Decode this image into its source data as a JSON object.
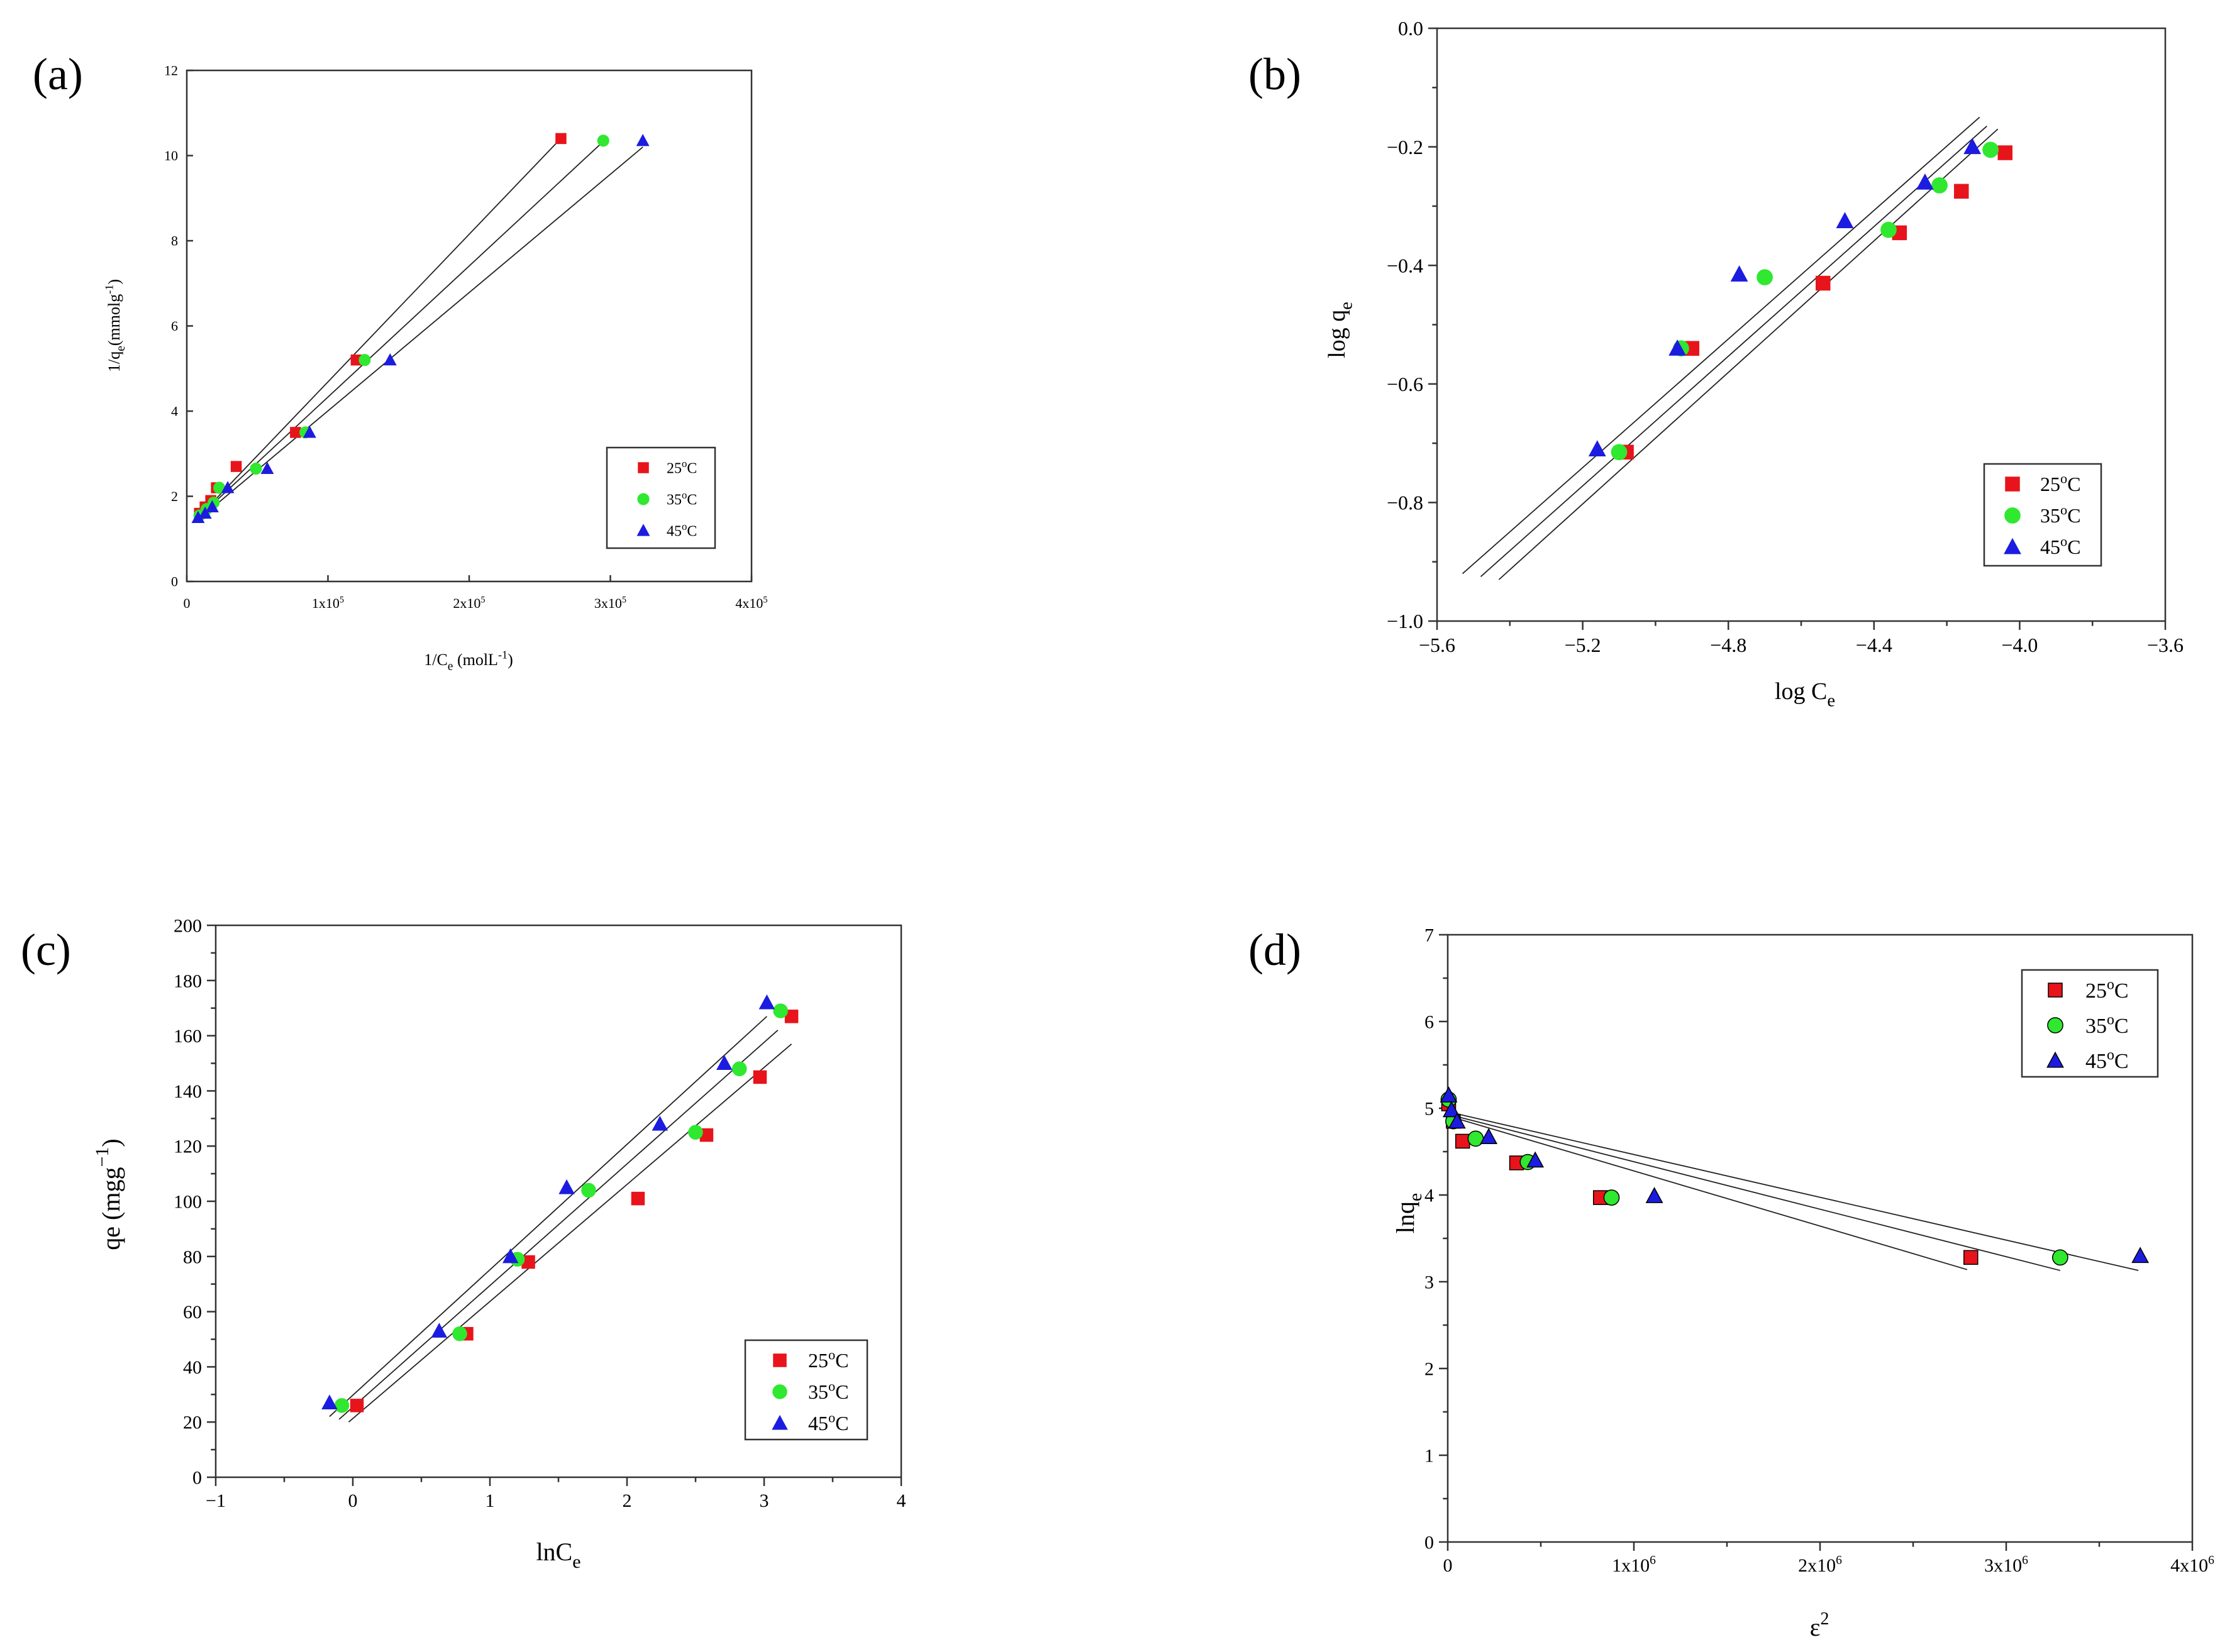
{
  "colors": {
    "25": "#e8141b",
    "35": "#2fe82f",
    "45": "#1c1ce0"
  },
  "chart_data": [
    {
      "type": "scatter",
      "panel": "(a)",
      "title": "",
      "xlabel": "1/C",
      "xlabel_sub": "e",
      "xlabel_unit": "(molL",
      "xlabel_unit_sup": "-1",
      "xlabel_unit_close": ")",
      "ylabel": "1/q",
      "ylabel_sub": "e",
      "ylabel_unit": "(mmolg",
      "ylabel_unit_sup": "-1",
      "ylabel_unit_close": ")",
      "xlim": [
        0,
        400000
      ],
      "ylim": [
        0,
        12
      ],
      "xticks": [
        0,
        100000,
        200000,
        300000,
        400000
      ],
      "xtick_labels": [
        "0",
        "1x10",
        "2x10",
        "3x10",
        "4x10"
      ],
      "xtick_sups": [
        "",
        "5",
        "5",
        "5",
        "5"
      ],
      "yticks": [
        0,
        2,
        4,
        6,
        8,
        10,
        12
      ],
      "ytick_labels": [
        "0",
        "2",
        "4",
        "6",
        "8",
        "10",
        "12"
      ],
      "legend": {
        "placement": "bottom-right",
        "entries": [
          "25",
          "35",
          "45"
        ],
        "sup": "o",
        "suffix": "C"
      },
      "series": [
        {
          "name": "25oC",
          "marker": "square",
          "x": [
            9000,
            13000,
            17000,
            21000,
            35000,
            77000,
            120000,
            265000
          ],
          "y": [
            1.6,
            1.75,
            1.9,
            2.2,
            2.7,
            3.5,
            5.2,
            10.4
          ],
          "fit": [
            [
              8000,
              1.5
            ],
            [
              262000,
              10.3
            ]
          ]
        },
        {
          "name": "35oC",
          "marker": "circle",
          "x": [
            9000,
            14000,
            19000,
            23000,
            49000,
            84000,
            126000,
            295000
          ],
          "y": [
            1.55,
            1.7,
            1.85,
            2.2,
            2.65,
            3.5,
            5.2,
            10.35
          ],
          "fit": [
            [
              8000,
              1.5
            ],
            [
              294000,
              10.3
            ]
          ]
        },
        {
          "name": "45oC",
          "marker": "triangle",
          "x": [
            8000,
            13000,
            18000,
            29000,
            57000,
            87000,
            144000,
            323000
          ],
          "y": [
            1.5,
            1.6,
            1.75,
            2.2,
            2.65,
            3.5,
            5.2,
            10.35
          ],
          "fit": [
            [
              8000,
              1.45
            ],
            [
              323000,
              10.2
            ]
          ]
        }
      ]
    },
    {
      "type": "scatter",
      "panel": "(b)",
      "title": "",
      "xlabel": "log C",
      "xlabel_sub": "e",
      "ylabel": "log q",
      "ylabel_sub": "e",
      "xlim": [
        -5.6,
        -3.6
      ],
      "ylim": [
        -1.0,
        0.0
      ],
      "xticks": [
        -5.6,
        -5.2,
        -4.8,
        -4.4,
        -4.0,
        -3.6
      ],
      "xtick_labels": [
        "−5.6",
        "−5.2",
        "−4.8",
        "−4.4",
        "−4.0",
        "−3.6"
      ],
      "yticks": [
        -1.0,
        -0.8,
        -0.6,
        -0.4,
        -0.2,
        0.0
      ],
      "ytick_labels": [
        "−1.0",
        "−0.8",
        "−0.6",
        "−0.4",
        "−0.2",
        "0.0"
      ],
      "legend": {
        "placement": "bottom-right",
        "entries": [
          "25",
          "35",
          "45"
        ],
        "sup": "o",
        "suffix": "C"
      },
      "series": [
        {
          "name": "25oC",
          "marker": "square",
          "x": [
            -5.08,
            -4.9,
            -4.54,
            -4.33,
            -4.16,
            -4.04
          ],
          "y": [
            -0.715,
            -0.54,
            -0.43,
            -0.345,
            -0.275,
            -0.21
          ],
          "fit": [
            [
              -5.43,
              -0.93
            ],
            [
              -4.06,
              -0.17
            ]
          ]
        },
        {
          "name": "35oC",
          "marker": "circle",
          "x": [
            -5.1,
            -4.93,
            -4.7,
            -4.36,
            -4.22,
            -4.08
          ],
          "y": [
            -0.715,
            -0.54,
            -0.42,
            -0.34,
            -0.265,
            -0.205
          ],
          "fit": [
            [
              -5.48,
              -0.925
            ],
            [
              -4.09,
              -0.165
            ]
          ]
        },
        {
          "name": "45oC",
          "marker": "triangle",
          "x": [
            -5.16,
            -4.94,
            -4.77,
            -4.48,
            -4.26,
            -4.13
          ],
          "y": [
            -0.71,
            -0.54,
            -0.415,
            -0.325,
            -0.26,
            -0.2
          ],
          "fit": [
            [
              -5.53,
              -0.92
            ],
            [
              -4.11,
              -0.15
            ]
          ]
        }
      ]
    },
    {
      "type": "scatter",
      "panel": "(c)",
      "title": "",
      "xlabel": "lnC",
      "xlabel_sub": "e",
      "ylabel": "qe (mgg",
      "ylabel_sup": "−1",
      "ylabel_close": ")",
      "xlim": [
        -1,
        4
      ],
      "ylim": [
        0,
        200
      ],
      "xticks": [
        -1,
        0,
        1,
        2,
        3,
        4
      ],
      "xtick_labels": [
        "−1",
        "0",
        "1",
        "2",
        "3",
        "4"
      ],
      "yticks": [
        0,
        20,
        40,
        60,
        80,
        100,
        120,
        140,
        160,
        180,
        200
      ],
      "ytick_labels": [
        "0",
        "20",
        "40",
        "60",
        "80",
        "100",
        "120",
        "140",
        "160",
        "180",
        "200"
      ],
      "legend": {
        "placement": "bottom-right",
        "entries": [
          "25",
          "35",
          "45"
        ],
        "sup": "o",
        "suffix": "C"
      },
      "series": [
        {
          "name": "25oC",
          "marker": "square",
          "x": [
            0.03,
            0.83,
            1.28,
            2.08,
            2.58,
            2.97,
            3.2
          ],
          "y": [
            26,
            52,
            78,
            101,
            124,
            145,
            167
          ],
          "fit": [
            [
              -0.03,
              20
            ],
            [
              3.2,
              157
            ]
          ]
        },
        {
          "name": "35oC",
          "marker": "circle",
          "x": [
            -0.08,
            0.78,
            1.2,
            1.72,
            2.5,
            2.82,
            3.12
          ],
          "y": [
            26,
            52,
            79,
            104,
            125,
            148,
            169
          ],
          "fit": [
            [
              -0.1,
              21
            ],
            [
              3.1,
              162
            ]
          ]
        },
        {
          "name": "45oC",
          "marker": "triangle",
          "x": [
            -0.17,
            0.63,
            1.15,
            1.56,
            2.24,
            2.71,
            3.02
          ],
          "y": [
            27,
            53,
            80,
            105,
            128,
            150,
            172
          ],
          "fit": [
            [
              -0.17,
              22
            ],
            [
              3.02,
              167
            ]
          ]
        }
      ]
    },
    {
      "type": "scatter",
      "panel": "(d)",
      "title": "",
      "xlabel": "ε",
      "xlabel_sup": "2",
      "ylabel": "lnq",
      "ylabel_sub": "e",
      "xlim": [
        0,
        4000000
      ],
      "ylim": [
        0,
        7
      ],
      "xticks": [
        0,
        1000000,
        2000000,
        3000000,
        4000000
      ],
      "xtick_labels": [
        "0",
        "1x10",
        "2x10",
        "3x10",
        "4x10"
      ],
      "xtick_sups": [
        "",
        "6",
        "6",
        "6",
        "6"
      ],
      "yticks": [
        0,
        1,
        2,
        3,
        4,
        5,
        6,
        7
      ],
      "ytick_labels": [
        "0",
        "1",
        "2",
        "3",
        "4",
        "5",
        "6",
        "7"
      ],
      "legend": {
        "placement": "top-right",
        "entries": [
          "25",
          "35",
          "45"
        ],
        "sup": "o",
        "suffix": "C"
      },
      "series": [
        {
          "name": "25oC",
          "marker": "square",
          "x": [
            5000,
            30000,
            80000,
            370000,
            820000,
            2810000
          ],
          "y": [
            5.05,
            4.85,
            4.62,
            4.37,
            3.97,
            3.28
          ],
          "fit": [
            [
              20000,
              4.9
            ],
            [
              2790000,
              3.14
            ]
          ]
        },
        {
          "name": "35oC",
          "marker": "circle",
          "x": [
            5000,
            30000,
            150000,
            430000,
            880000,
            3290000
          ],
          "y": [
            5.1,
            4.85,
            4.65,
            4.38,
            3.97,
            3.28
          ],
          "fit": [
            [
              20000,
              4.92
            ],
            [
              3290000,
              3.13
            ]
          ]
        },
        {
          "name": "45oC",
          "marker": "triangle",
          "x": [
            5000,
            20000,
            50000,
            220000,
            470000,
            1110000,
            3720000
          ],
          "y": [
            5.15,
            4.98,
            4.85,
            4.67,
            4.4,
            3.99,
            3.3
          ],
          "fit": [
            [
              20000,
              4.95
            ],
            [
              3710000,
              3.13
            ]
          ]
        }
      ]
    }
  ]
}
